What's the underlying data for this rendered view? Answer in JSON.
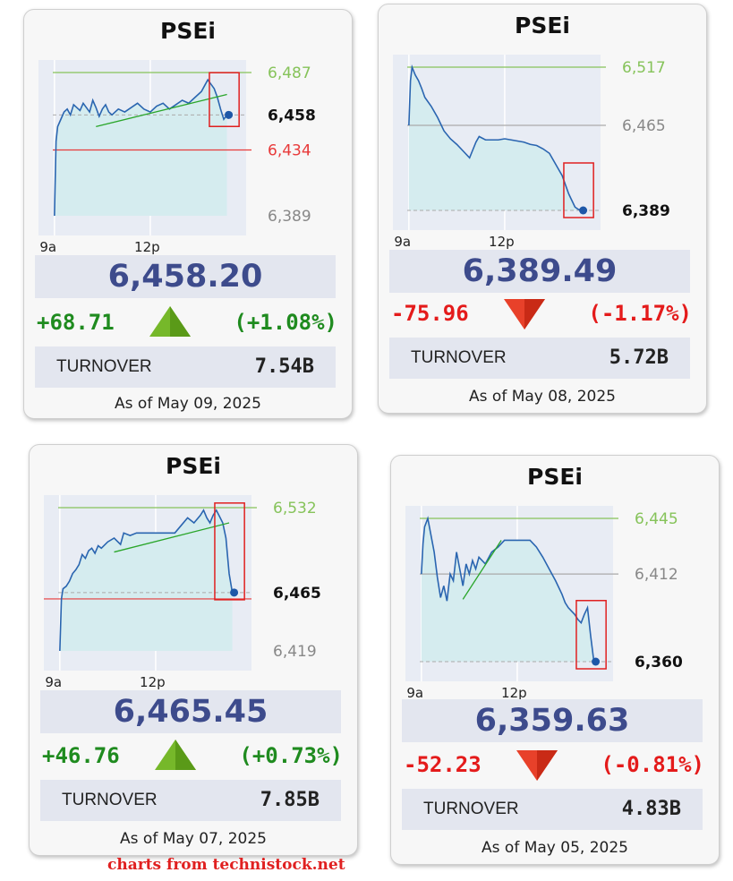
{
  "colors": {
    "green_line": "#86c35a",
    "red_line": "#e83a3a",
    "price_line": "#2a65b0",
    "fill": "#d5ecef",
    "plot_bg": "#e8ecf4",
    "up": "#1f8b1f",
    "down": "#e41b1b",
    "price_text": "#3d4b8c"
  },
  "footer": "charts from technistock.net",
  "cards": [
    {
      "title": "PSEi",
      "price": "6,458.20",
      "change": "+68.71",
      "change_pct": "(+1.08%)",
      "direction": "up",
      "turnover_label": "TURNOVER",
      "turnover": "7.54B",
      "as_of": "As of May 09, 2025"
    },
    {
      "title": "PSEi",
      "price": "6,389.49",
      "change": "-75.96",
      "change_pct": "(-1.17%)",
      "direction": "down",
      "turnover_label": "TURNOVER",
      "turnover": "5.72B",
      "as_of": "As of May 08, 2025"
    },
    {
      "title": "PSEi",
      "price": "6,465.45",
      "change": "+46.76",
      "change_pct": "(+0.73%)",
      "direction": "up",
      "turnover_label": "TURNOVER",
      "turnover": "7.85B",
      "as_of": "As of May 07, 2025"
    },
    {
      "title": "PSEi",
      "price": "6,359.63",
      "change": "-52.23",
      "change_pct": "(-0.81%)",
      "direction": "down",
      "turnover_label": "TURNOVER",
      "turnover": "4.83B",
      "as_of": "As of May 05, 2025"
    }
  ],
  "chart_data": [
    {
      "type": "line",
      "title": "PSEi",
      "x_ticks": [
        "9a",
        "12p"
      ],
      "x_range": [
        9.0,
        15.5
      ],
      "ylim": [
        6389,
        6487
      ],
      "levels": {
        "high": 6487,
        "close": 6458,
        "open": 6434,
        "low": 6389
      },
      "level_labels": {
        "high": "6,487",
        "close": "6,458",
        "open": "6,434",
        "low": "6,389"
      },
      "series": [
        {
          "x": [
            9.5,
            9.55,
            9.6,
            9.7,
            9.8,
            9.9,
            10.0,
            10.1,
            10.2,
            10.3,
            10.4,
            10.5,
            10.6,
            10.7,
            10.8,
            10.9,
            11.0,
            11.1,
            11.2,
            11.3,
            11.5,
            11.7,
            11.9,
            12.1,
            12.3,
            12.5,
            12.7,
            12.9,
            13.1,
            13.3,
            13.5,
            13.7,
            13.9,
            14.1,
            14.2,
            14.3,
            14.4,
            14.5,
            14.6,
            14.7,
            14.8,
            14.9
          ],
          "y": [
            6389,
            6440,
            6450,
            6455,
            6460,
            6462,
            6458,
            6465,
            6463,
            6461,
            6466,
            6463,
            6460,
            6468,
            6463,
            6457,
            6462,
            6465,
            6460,
            6458,
            6462,
            6460,
            6463,
            6466,
            6462,
            6460,
            6464,
            6466,
            6462,
            6465,
            6468,
            6466,
            6470,
            6474,
            6478,
            6482,
            6479,
            6476,
            6470,
            6462,
            6455,
            6458
          ]
        }
      ],
      "trendline": {
        "x": [
          10.8,
          14.9
        ],
        "y": [
          6450,
          6472
        ]
      }
    },
    {
      "type": "line",
      "title": "PSEi",
      "x_ticks": [
        "9a",
        "12p"
      ],
      "x_range": [
        9.0,
        15.5
      ],
      "ylim": [
        6389,
        6517
      ],
      "levels": {
        "high": 6517,
        "close": 6389,
        "open": 6465,
        "low": 6389
      },
      "level_labels": {
        "high": "6,517",
        "close": "6,389",
        "open": "6,465"
      },
      "series": [
        {
          "x": [
            9.5,
            9.55,
            9.6,
            9.7,
            9.8,
            9.9,
            10.0,
            10.2,
            10.4,
            10.6,
            10.8,
            11.0,
            11.2,
            11.4,
            11.5,
            11.6,
            11.7,
            11.9,
            12.1,
            12.3,
            12.5,
            12.7,
            12.9,
            13.1,
            13.3,
            13.5,
            13.7,
            13.9,
            14.0,
            14.1,
            14.2,
            14.3,
            14.4,
            14.5,
            14.6,
            14.7,
            14.8,
            14.9
          ],
          "y": [
            6465,
            6505,
            6517,
            6510,
            6505,
            6498,
            6490,
            6482,
            6472,
            6460,
            6453,
            6448,
            6442,
            6436,
            6443,
            6450,
            6455,
            6452,
            6452,
            6452,
            6453,
            6452,
            6451,
            6450,
            6448,
            6447,
            6444,
            6440,
            6435,
            6430,
            6425,
            6420,
            6412,
            6404,
            6398,
            6392,
            6390,
            6389
          ]
        }
      ],
      "trendline": null
    },
    {
      "type": "line",
      "title": "PSEi",
      "x_ticks": [
        "9a",
        "12p"
      ],
      "x_range": [
        9.0,
        15.5
      ],
      "ylim": [
        6419,
        6532
      ],
      "levels": {
        "high": 6532,
        "close": 6465,
        "open": 6419,
        "low": 6419
      },
      "level_labels": {
        "high": "6,532",
        "close": "6,465",
        "low": "6,419"
      },
      "series": [
        {
          "x": [
            9.5,
            9.55,
            9.6,
            9.7,
            9.8,
            9.9,
            10.0,
            10.1,
            10.2,
            10.3,
            10.4,
            10.5,
            10.6,
            10.7,
            10.8,
            11.0,
            11.2,
            11.4,
            11.5,
            11.7,
            11.9,
            12.1,
            12.3,
            12.5,
            12.7,
            12.9,
            13.1,
            13.3,
            13.5,
            13.7,
            13.9,
            14.0,
            14.1,
            14.2,
            14.3,
            14.4,
            14.5,
            14.6,
            14.7,
            14.8,
            14.9
          ],
          "y": [
            6419,
            6460,
            6468,
            6470,
            6474,
            6480,
            6483,
            6487,
            6495,
            6492,
            6498,
            6500,
            6496,
            6502,
            6500,
            6505,
            6508,
            6503,
            6512,
            6510,
            6512,
            6512,
            6512,
            6512,
            6512,
            6512,
            6512,
            6518,
            6524,
            6520,
            6526,
            6530,
            6524,
            6520,
            6526,
            6530,
            6525,
            6520,
            6508,
            6480,
            6465
          ]
        }
      ],
      "trendline": {
        "x": [
          11.2,
          14.8
        ],
        "y": [
          6497,
          6520
        ]
      }
    },
    {
      "type": "line",
      "title": "PSEi",
      "x_ticks": [
        "9a",
        "12p"
      ],
      "x_range": [
        9.0,
        15.5
      ],
      "ylim": [
        6360,
        6445
      ],
      "levels": {
        "high": 6445,
        "close": 6360,
        "open": 6412,
        "low": 6360
      },
      "level_labels": {
        "high": "6,445",
        "close": "6,360",
        "open": "6,412"
      },
      "series": [
        {
          "x": [
            9.5,
            9.55,
            9.6,
            9.7,
            9.8,
            9.9,
            10.0,
            10.1,
            10.2,
            10.3,
            10.4,
            10.5,
            10.6,
            10.7,
            10.8,
            10.9,
            11.0,
            11.1,
            11.2,
            11.3,
            11.5,
            11.7,
            11.9,
            12.1,
            12.3,
            12.5,
            12.7,
            12.9,
            13.1,
            13.3,
            13.5,
            13.7,
            13.9,
            14.0,
            14.1,
            14.2,
            14.3,
            14.4,
            14.5,
            14.6,
            14.7,
            14.8,
            14.9
          ],
          "y": [
            6412,
            6430,
            6440,
            6445,
            6435,
            6425,
            6410,
            6398,
            6405,
            6396,
            6412,
            6408,
            6425,
            6415,
            6405,
            6418,
            6412,
            6420,
            6415,
            6422,
            6418,
            6425,
            6428,
            6432,
            6432,
            6432,
            6432,
            6432,
            6428,
            6422,
            6415,
            6408,
            6400,
            6395,
            6392,
            6390,
            6388,
            6385,
            6383,
            6388,
            6392,
            6375,
            6360
          ]
        }
      ],
      "trendline": {
        "x": [
          10.8,
          12.0
        ],
        "y": [
          6397,
          6432
        ]
      }
    }
  ]
}
